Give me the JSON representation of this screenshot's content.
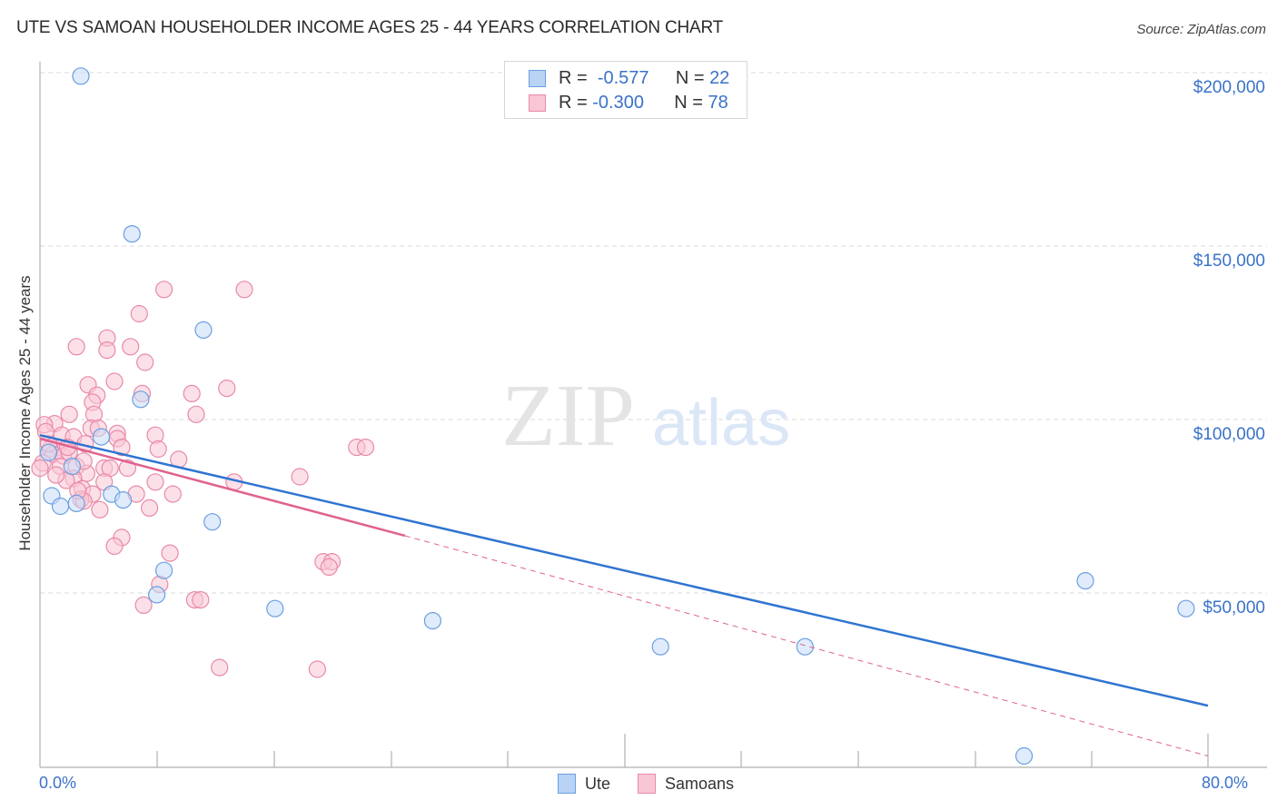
{
  "header": {
    "title": "UTE VS SAMOAN HOUSEHOLDER INCOME AGES 25 - 44 YEARS CORRELATION CHART",
    "source": "Source: ZipAtlas.com"
  },
  "legend": {
    "series": [
      {
        "name": "Ute",
        "r_label": "R =",
        "r_value": "-0.577",
        "n_label": "N =",
        "n_value": "22",
        "color": "#6a9fe0",
        "fill": "#b9d3f5"
      },
      {
        "name": "Samoans",
        "r_label": "R =",
        "r_value": "-0.300",
        "n_label": "N =",
        "n_value": "78",
        "color": "#e88aa8",
        "fill": "#f9c6d6"
      }
    ]
  },
  "axes": {
    "ylabel": "Householder Income Ages 25 - 44 years",
    "yticks": [
      "$200,000",
      "$150,000",
      "$100,000",
      "$50,000"
    ],
    "xticks": [
      "0.0%",
      "80.0%"
    ]
  },
  "watermark": {
    "part1": "ZIP",
    "part2": "atlas"
  },
  "colors": {
    "ute": "#2f74d0",
    "samoans": "#e0628e",
    "tick_text": "#3a72c9"
  },
  "chart_data": {
    "type": "scatter",
    "title": "UTE VS SAMOAN HOUSEHOLDER INCOME AGES 25 - 44 YEARS CORRELATION CHART",
    "xlabel": "",
    "ylabel": "Householder Income Ages 25 - 44 years",
    "xlim": [
      0,
      80
    ],
    "ylim": [
      0,
      205000
    ],
    "x_unit": "%",
    "grid": true,
    "legend_position": "top-center",
    "series": [
      {
        "name": "Ute",
        "r": -0.577,
        "n": 22,
        "trend": {
          "x": [
            0,
            80
          ],
          "y": [
            95500,
            17500
          ],
          "style": "solid"
        },
        "points": [
          [
            2.8,
            199000
          ],
          [
            6.3,
            153500
          ],
          [
            11.2,
            125800
          ],
          [
            6.9,
            105800
          ],
          [
            0.8,
            78000
          ],
          [
            1.4,
            75000
          ],
          [
            2.5,
            75800
          ],
          [
            4.9,
            78500
          ],
          [
            5.7,
            76800
          ],
          [
            11.8,
            70500
          ],
          [
            8.5,
            56500
          ],
          [
            8.0,
            49500
          ],
          [
            16.1,
            45500
          ],
          [
            26.9,
            42000
          ],
          [
            42.5,
            34500
          ],
          [
            52.4,
            34500
          ],
          [
            71.6,
            53500
          ],
          [
            78.5,
            45500
          ],
          [
            67.4,
            3000
          ],
          [
            4.2,
            95000
          ],
          [
            2.2,
            86500
          ],
          [
            0.6,
            90500
          ]
        ]
      },
      {
        "name": "Samoans",
        "r": -0.3,
        "n": 78,
        "trend": {
          "x": [
            0,
            25
          ],
          "y": [
            94500,
            66500
          ],
          "style": "solid",
          "extension": {
            "x": [
              25,
              80
            ],
            "y": [
              66500,
              3000
            ],
            "style": "dashed"
          }
        },
        "points": [
          [
            8.5,
            137500
          ],
          [
            14.0,
            137500
          ],
          [
            6.8,
            130500
          ],
          [
            2.5,
            121000
          ],
          [
            4.6,
            123500
          ],
          [
            4.6,
            120000
          ],
          [
            6.2,
            121000
          ],
          [
            7.2,
            116500
          ],
          [
            5.1,
            111000
          ],
          [
            3.3,
            110000
          ],
          [
            12.8,
            109000
          ],
          [
            10.4,
            107500
          ],
          [
            3.9,
            107000
          ],
          [
            3.6,
            105000
          ],
          [
            7.0,
            107500
          ],
          [
            10.7,
            101500
          ],
          [
            3.7,
            101500
          ],
          [
            2.0,
            101500
          ],
          [
            1.0,
            98800
          ],
          [
            0.3,
            98500
          ],
          [
            3.5,
            97500
          ],
          [
            4.0,
            97500
          ],
          [
            5.3,
            96000
          ],
          [
            7.9,
            95500
          ],
          [
            1.5,
            95500
          ],
          [
            2.3,
            95000
          ],
          [
            3.1,
            93000
          ],
          [
            1.2,
            92000
          ],
          [
            5.3,
            94500
          ],
          [
            5.6,
            92000
          ],
          [
            8.1,
            91500
          ],
          [
            21.7,
            92000
          ],
          [
            22.3,
            92000
          ],
          [
            0.7,
            91500
          ],
          [
            0.9,
            90000
          ],
          [
            1.6,
            89500
          ],
          [
            2.0,
            90500
          ],
          [
            0.2,
            87500
          ],
          [
            0.0,
            86000
          ],
          [
            1.4,
            86500
          ],
          [
            2.5,
            86500
          ],
          [
            4.4,
            86000
          ],
          [
            4.8,
            86000
          ],
          [
            3.2,
            84500
          ],
          [
            2.3,
            83000
          ],
          [
            1.8,
            82500
          ],
          [
            4.4,
            82000
          ],
          [
            7.9,
            82000
          ],
          [
            13.3,
            82000
          ],
          [
            17.8,
            83500
          ],
          [
            2.9,
            80000
          ],
          [
            3.6,
            78500
          ],
          [
            6.6,
            78500
          ],
          [
            9.1,
            78500
          ],
          [
            2.8,
            77000
          ],
          [
            3.0,
            76500
          ],
          [
            4.1,
            74000
          ],
          [
            7.5,
            74500
          ],
          [
            5.6,
            66000
          ],
          [
            5.1,
            63500
          ],
          [
            8.9,
            61500
          ],
          [
            19.4,
            59000
          ],
          [
            20.0,
            59000
          ],
          [
            19.8,
            57500
          ],
          [
            8.2,
            52500
          ],
          [
            10.6,
            48000
          ],
          [
            11.0,
            48000
          ],
          [
            7.1,
            46500
          ],
          [
            12.3,
            28500
          ],
          [
            19.0,
            28000
          ],
          [
            0.6,
            93000
          ],
          [
            1.9,
            92000
          ],
          [
            3.0,
            88000
          ],
          [
            6.0,
            86000
          ],
          [
            9.5,
            88500
          ],
          [
            2.6,
            79500
          ],
          [
            1.1,
            84000
          ],
          [
            0.4,
            96500
          ]
        ]
      }
    ]
  }
}
